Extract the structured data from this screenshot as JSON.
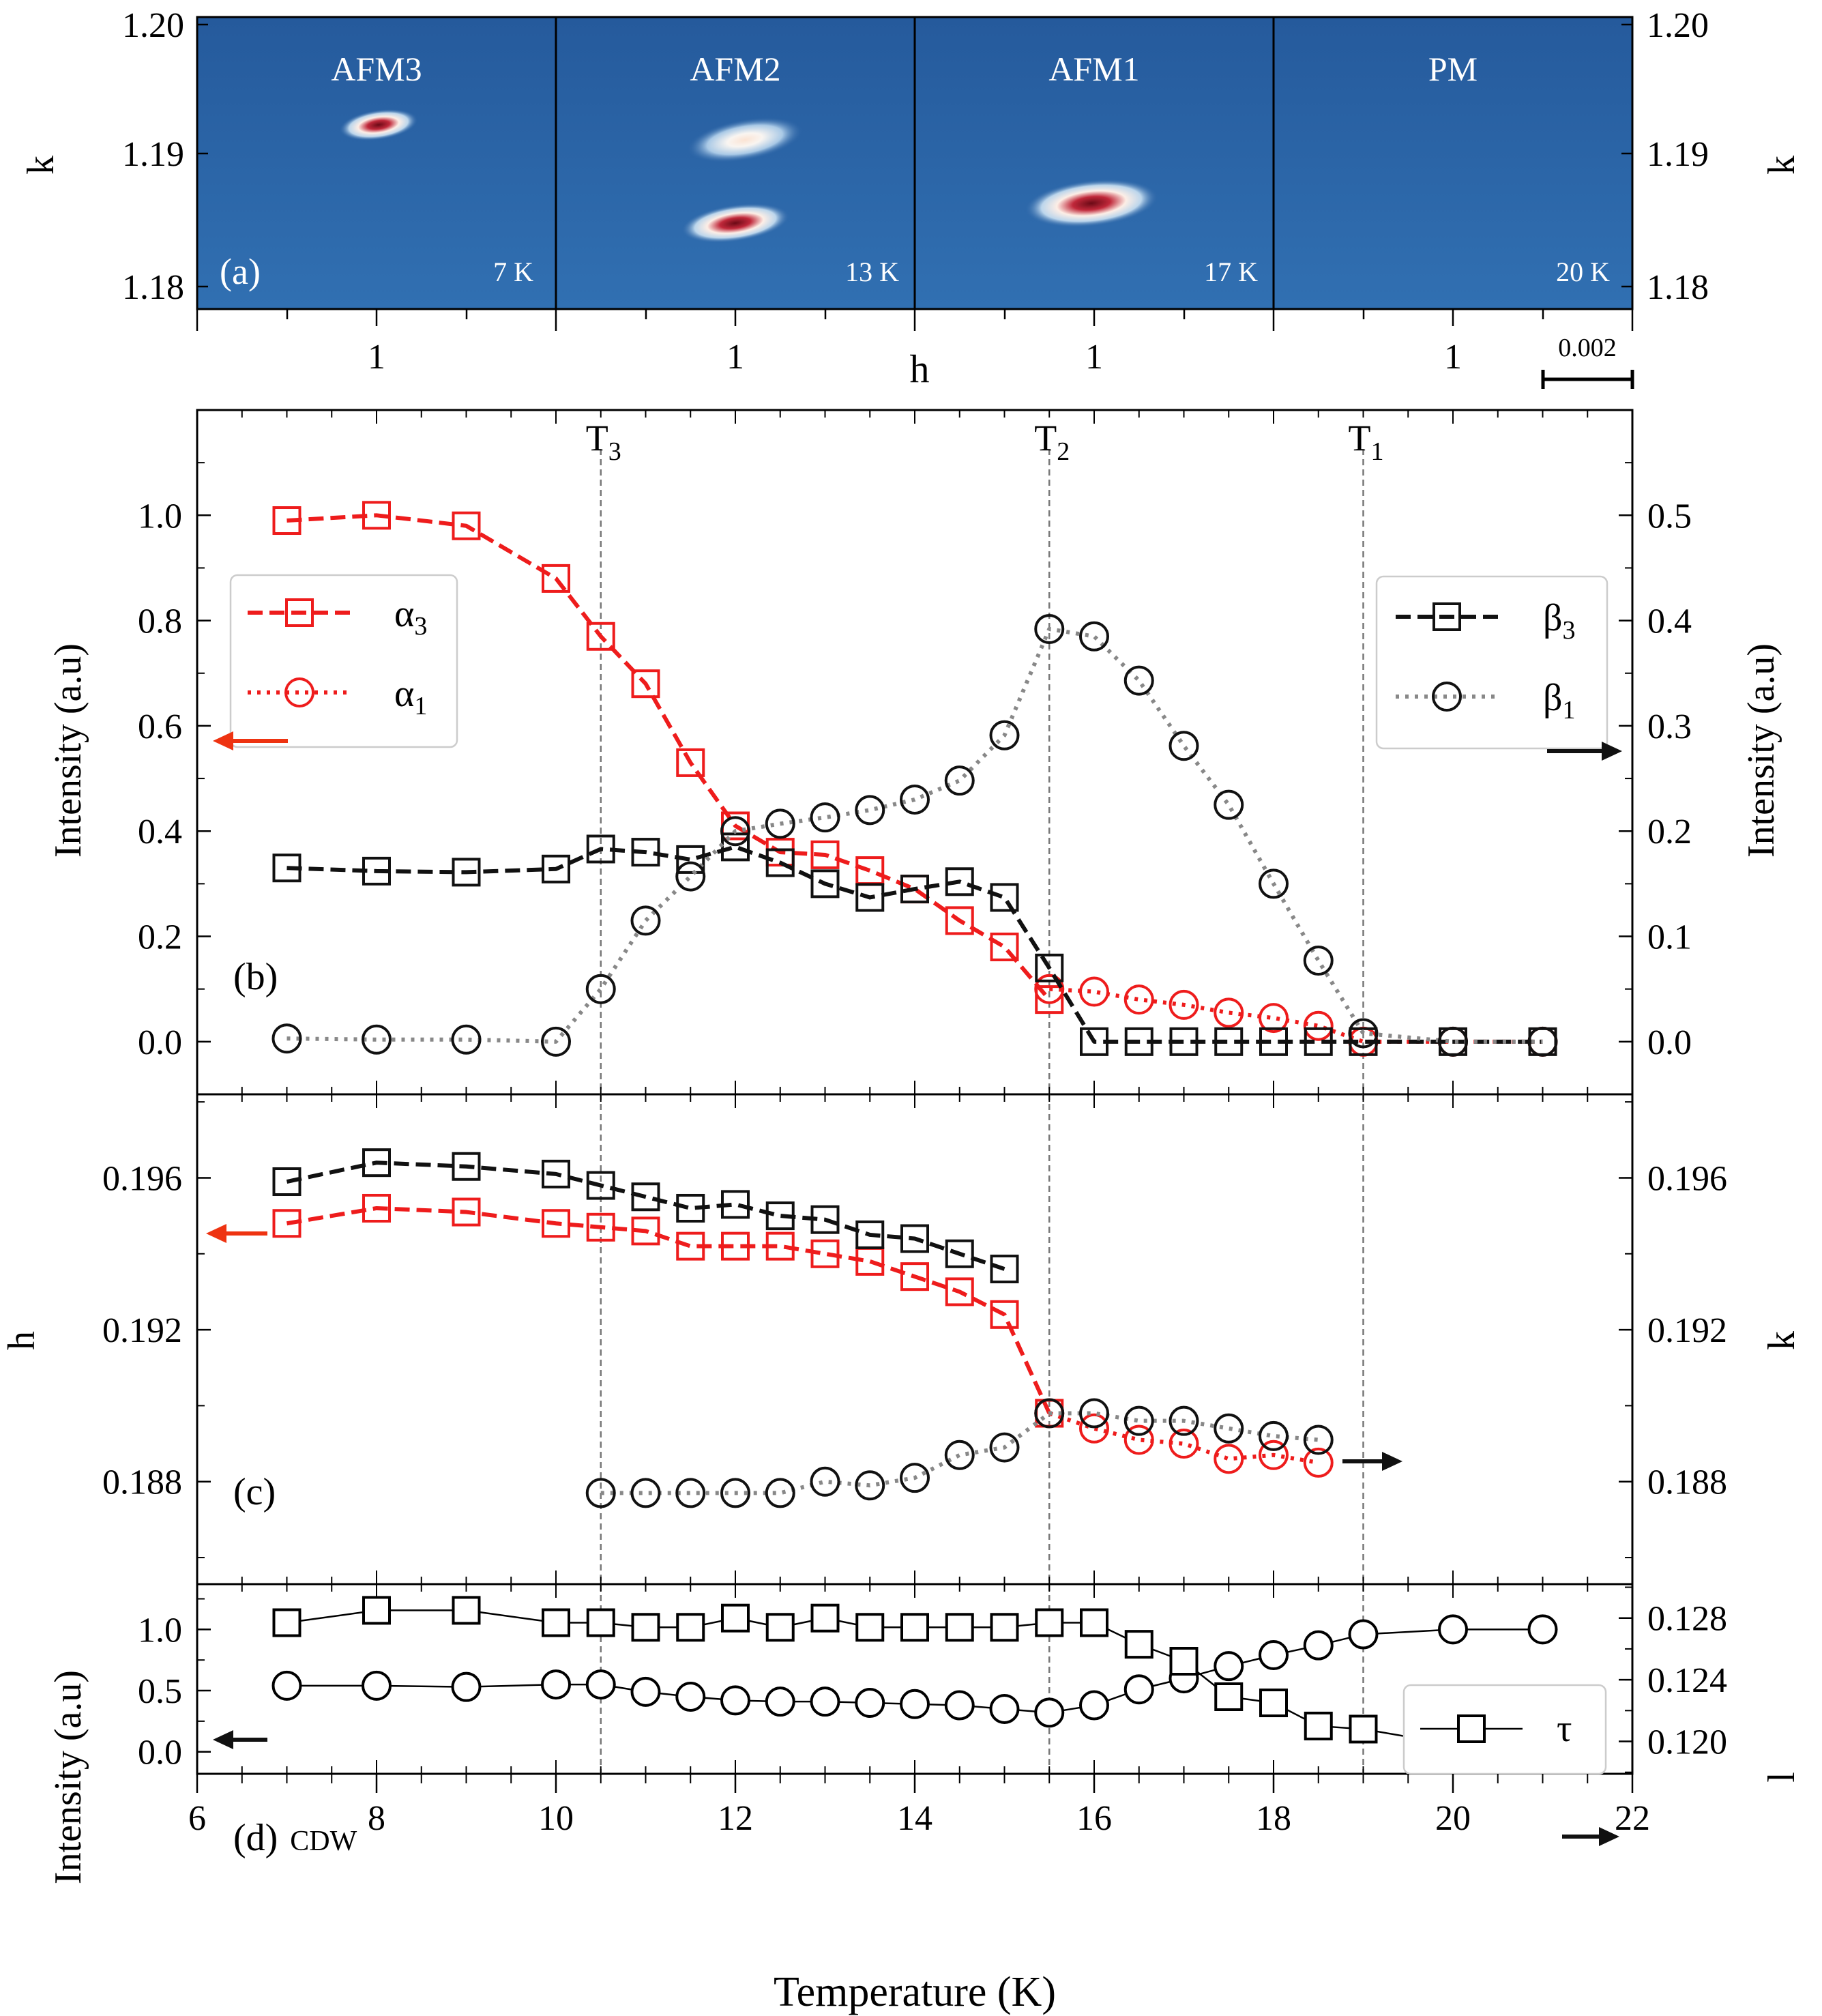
{
  "figure": {
    "a": {
      "panel_letter": "(a)",
      "k_label": "k",
      "h_label": "h",
      "k_ticks": [
        "1.20",
        "1.19",
        "1.18"
      ],
      "h_tick": "1",
      "scale_bar_label": "0.002",
      "maps": [
        {
          "phase": "AFM3",
          "temp": "7 K"
        },
        {
          "phase": "AFM2",
          "temp": "13 K"
        },
        {
          "phase": "AFM1",
          "temp": "17 K"
        },
        {
          "phase": "PM",
          "temp": "20 K"
        }
      ],
      "colors": {
        "background": "#2d64a6",
        "peak_core": "#7a0d1a",
        "peak_halo": "#fff4ea"
      }
    },
    "transitions": [
      {
        "label": "T",
        "sub": "3",
        "x": 10.5
      },
      {
        "label": "T",
        "sub": "2",
        "x": 15.5
      },
      {
        "label": "T",
        "sub": "1",
        "x": 19.0
      }
    ],
    "b": {
      "panel_letter": "(b)",
      "ylabel_left": "Intensity (a.u)",
      "ylabel_right": "Intensity (a.u)",
      "left_legend": [
        {
          "sym": "α",
          "sub": "3"
        },
        {
          "sym": "α",
          "sub": "1"
        }
      ],
      "right_legend": [
        {
          "sym": "β",
          "sub": "3"
        },
        {
          "sym": "β",
          "sub": "1"
        }
      ]
    },
    "c": {
      "panel_letter": "(c)",
      "ylabel_left": "h",
      "ylabel_right": "k"
    },
    "d": {
      "panel_letter": "(d)",
      "panel_note": "CDW",
      "ylabel_left": "Intensity (a.u)",
      "ylabel_right": "l",
      "legend": "τ"
    },
    "xlabel": "Temperature (K)"
  },
  "chart_data": [
    {
      "panel": "b",
      "type": "line",
      "xlim": [
        6,
        22
      ],
      "xticks": [
        6,
        8,
        10,
        12,
        14,
        16,
        18,
        20,
        22
      ],
      "ylim_left": [
        -0.1,
        1.2
      ],
      "yticks_left": [
        "0.0",
        "0.2",
        "0.4",
        "0.6",
        "0.8",
        "1.0"
      ],
      "ylim_right": [
        -0.05,
        0.6
      ],
      "yticks_right": [
        "0.0",
        "0.1",
        "0.2",
        "0.3",
        "0.4",
        "0.5"
      ],
      "series": [
        {
          "name": "α3",
          "axis": "left",
          "marker": "square",
          "line": "dashed",
          "color": "#ee1c1c",
          "x": [
            7,
            8,
            9,
            10,
            10.5,
            11,
            11.5,
            12,
            12.5,
            13,
            13.5,
            14,
            14.5,
            15,
            15.5
          ],
          "y": [
            0.99,
            1.0,
            0.98,
            0.88,
            0.77,
            0.68,
            0.53,
            0.41,
            0.36,
            0.355,
            0.325,
            0.29,
            0.23,
            0.18,
            0.08
          ]
        },
        {
          "name": "α1",
          "axis": "left",
          "marker": "circle",
          "line": "dotted",
          "color": "#ee1c1c",
          "x": [
            15.5,
            16,
            16.5,
            17,
            17.5,
            18,
            18.5,
            19,
            20,
            21
          ],
          "y": [
            0.1,
            0.095,
            0.08,
            0.07,
            0.055,
            0.045,
            0.03,
            0.0,
            0.0,
            0.0
          ]
        },
        {
          "name": "β3",
          "axis": "right",
          "marker": "square",
          "line": "dashed",
          "color": "#111111",
          "x": [
            7,
            8,
            9,
            10,
            10.5,
            11,
            11.5,
            12,
            12.5,
            13,
            13.5,
            14,
            14.5,
            15,
            15.5,
            16,
            16.5,
            17,
            17.5,
            18,
            18.5,
            19,
            20,
            21
          ],
          "y": [
            0.165,
            0.162,
            0.161,
            0.164,
            0.183,
            0.18,
            0.173,
            0.185,
            0.17,
            0.15,
            0.137,
            0.145,
            0.152,
            0.137,
            0.07,
            0.0,
            0.0,
            0.0,
            0.0,
            0.0,
            0.0,
            0.0,
            0.0,
            0.0
          ]
        },
        {
          "name": "β1",
          "axis": "right",
          "marker": "circle",
          "line": "dotted",
          "color": "#888888",
          "x": [
            7,
            8,
            9,
            10,
            10.5,
            11,
            11.5,
            12,
            12.5,
            13,
            13.5,
            14,
            14.5,
            15,
            15.5,
            16,
            16.5,
            17,
            17.5,
            18,
            18.5,
            19,
            20,
            21
          ],
          "y": [
            0.003,
            0.002,
            0.002,
            0.0,
            0.05,
            0.115,
            0.157,
            0.2,
            0.207,
            0.213,
            0.22,
            0.23,
            0.248,
            0.291,
            0.392,
            0.385,
            0.343,
            0.281,
            0.225,
            0.15,
            0.077,
            0.008,
            0.0,
            0.0
          ]
        }
      ]
    },
    {
      "panel": "c",
      "type": "line",
      "xlim": [
        6,
        22
      ],
      "ylim_left": [
        0.1853,
        0.1982
      ],
      "yticks_left": [
        "0.188",
        "0.192",
        "0.196"
      ],
      "ylim_right": [
        0.1853,
        0.1982
      ],
      "yticks_right": [
        "0.188",
        "0.192",
        "0.196"
      ],
      "series": [
        {
          "name": "α3",
          "axis": "left",
          "marker": "square",
          "line": "dashed",
          "color": "#ee1c1c",
          "x": [
            7,
            8,
            9,
            10,
            10.5,
            11,
            11.5,
            12,
            12.5,
            13,
            13.5,
            14,
            14.5,
            15,
            15.5
          ],
          "y": [
            0.1948,
            0.1952,
            0.1951,
            0.1948,
            0.1947,
            0.1946,
            0.1942,
            0.1942,
            0.1942,
            0.194,
            0.1938,
            0.1934,
            0.193,
            0.1924,
            0.1898
          ]
        },
        {
          "name": "α1",
          "axis": "left",
          "marker": "circle",
          "line": "dotted",
          "color": "#ee1c1c",
          "x": [
            15.5,
            16,
            16.5,
            17,
            17.5,
            18,
            18.5
          ],
          "y": [
            0.1898,
            0.1894,
            0.1891,
            0.189,
            0.1886,
            0.1887,
            0.1885
          ]
        },
        {
          "name": "β3",
          "axis": "right",
          "marker": "square",
          "line": "dashed",
          "color": "#111111",
          "x": [
            7,
            8,
            9,
            10,
            10.5,
            11,
            11.5,
            12,
            12.5,
            13,
            13.5,
            14,
            14.5,
            15
          ],
          "y": [
            0.1959,
            0.1964,
            0.1963,
            0.1961,
            0.1958,
            0.1955,
            0.1952,
            0.1953,
            0.195,
            0.1949,
            0.1945,
            0.1944,
            0.194,
            0.1936
          ]
        },
        {
          "name": "β1",
          "axis": "right",
          "marker": "circle",
          "line": "dotted",
          "color": "#888888",
          "x": [
            10.5,
            11,
            11.5,
            12,
            12.5,
            13,
            13.5,
            14,
            14.5,
            15,
            15.5,
            16,
            16.5,
            17,
            17.5,
            18,
            18.5
          ],
          "y": [
            0.1877,
            0.1877,
            0.1877,
            0.1877,
            0.1877,
            0.188,
            0.1879,
            0.1881,
            0.1887,
            0.1889,
            0.1898,
            0.1898,
            0.1896,
            0.1896,
            0.1894,
            0.1892,
            0.1891
          ]
        }
      ]
    },
    {
      "panel": "d",
      "type": "line",
      "xlim": [
        6,
        22
      ],
      "ylim_left": [
        -0.18,
        1.37
      ],
      "yticks_left": [
        "0.0",
        "0.5",
        "1.0"
      ],
      "ylim_right": [
        0.1179,
        0.1302
      ],
      "yticks_right": [
        "0.120",
        "0.124",
        "0.128"
      ],
      "series": [
        {
          "name": "CDW intensity",
          "axis": "left",
          "marker": "circle",
          "line": "solid",
          "color": "#000000",
          "x": [
            7,
            8,
            9,
            10,
            10.5,
            11,
            11.5,
            12,
            12.5,
            13,
            13.5,
            14,
            14.5,
            15,
            15.5,
            16,
            16.5,
            17,
            17.5,
            18,
            18.5,
            19,
            20,
            21
          ],
          "y": [
            0.54,
            0.54,
            0.53,
            0.55,
            0.55,
            0.49,
            0.45,
            0.42,
            0.41,
            0.41,
            0.4,
            0.39,
            0.38,
            0.35,
            0.32,
            0.38,
            0.51,
            0.6,
            0.7,
            0.79,
            0.87,
            0.96,
            1.0,
            1.0
          ]
        },
        {
          "name": "τ",
          "axis": "right",
          "marker": "square",
          "line": "solid",
          "color": "#000000",
          "x": [
            7,
            8,
            9,
            10,
            10.5,
            11,
            11.5,
            12,
            12.5,
            13,
            13.5,
            14,
            14.5,
            15,
            15.5,
            16,
            16.5,
            17,
            17.5,
            18,
            18.5,
            19,
            20,
            21
          ],
          "y": [
            0.1277,
            0.1285,
            0.1285,
            0.1277,
            0.1277,
            0.1274,
            0.1274,
            0.128,
            0.1274,
            0.128,
            0.1274,
            0.1274,
            0.1274,
            0.1274,
            0.1277,
            0.1277,
            0.1263,
            0.1252,
            0.1229,
            0.1225,
            0.121,
            0.1208,
            0.1198,
            0.12
          ]
        }
      ]
    }
  ]
}
